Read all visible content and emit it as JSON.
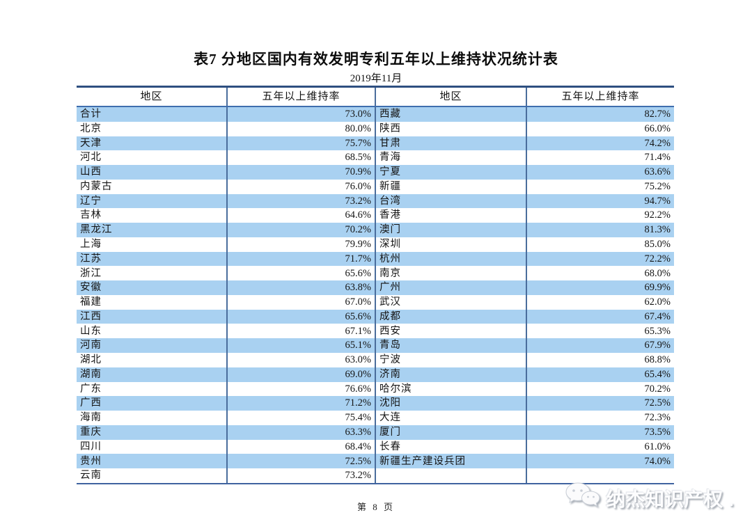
{
  "page": {
    "title": "表7  分地区国内有效发明专利五年以上维持状况统计表",
    "subtitle": "2019年11月",
    "footer": "第 8 页",
    "watermark": "纳杰知识产权",
    "watermark_dot": "."
  },
  "icons": {
    "logo": "chat-bubbles-icon"
  },
  "colors": {
    "row_highlight": "#a9d1f1",
    "rule_top": "#2e4f80",
    "rule_mid": "#3f6eae",
    "rule_bottom": "#3f63a0",
    "column_divider": "#4a6d9c"
  },
  "table": {
    "headers": [
      "地区",
      "五年以上维持率",
      "地区",
      "五年以上维持率"
    ],
    "rows": [
      [
        "合计",
        "73.0%",
        "西藏",
        "82.7%"
      ],
      [
        "北京",
        "80.0%",
        "陕西",
        "66.0%"
      ],
      [
        "天津",
        "75.7%",
        "甘肃",
        "74.2%"
      ],
      [
        "河北",
        "68.5%",
        "青海",
        "71.4%"
      ],
      [
        "山西",
        "70.9%",
        "宁夏",
        "63.6%"
      ],
      [
        "内蒙古",
        "76.0%",
        "新疆",
        "75.2%"
      ],
      [
        "辽宁",
        "73.2%",
        "台湾",
        "94.7%"
      ],
      [
        "吉林",
        "64.6%",
        "香港",
        "92.2%"
      ],
      [
        "黑龙江",
        "70.2%",
        "澳门",
        "81.3%"
      ],
      [
        "上海",
        "79.9%",
        "深圳",
        "85.0%"
      ],
      [
        "江苏",
        "71.7%",
        "杭州",
        "72.2%"
      ],
      [
        "浙江",
        "65.6%",
        "南京",
        "68.0%"
      ],
      [
        "安徽",
        "63.8%",
        "广州",
        "69.9%"
      ],
      [
        "福建",
        "67.0%",
        "武汉",
        "62.0%"
      ],
      [
        "江西",
        "65.6%",
        "成都",
        "67.4%"
      ],
      [
        "山东",
        "67.1%",
        "西安",
        "65.3%"
      ],
      [
        "河南",
        "65.1%",
        "青岛",
        "67.9%"
      ],
      [
        "湖北",
        "63.0%",
        "宁波",
        "68.8%"
      ],
      [
        "湖南",
        "69.0%",
        "济南",
        "65.4%"
      ],
      [
        "广东",
        "76.6%",
        "哈尔滨",
        "70.2%"
      ],
      [
        "广西",
        "71.2%",
        "沈阳",
        "72.5%"
      ],
      [
        "海南",
        "75.4%",
        "大连",
        "72.3%"
      ],
      [
        "重庆",
        "63.3%",
        "厦门",
        "73.5%"
      ],
      [
        "四川",
        "68.4%",
        "长春",
        "61.0%"
      ],
      [
        "贵州",
        "72.5%",
        "新疆生产建设兵团",
        "74.0%"
      ],
      [
        "云南",
        "73.2%",
        "",
        ""
      ]
    ]
  }
}
